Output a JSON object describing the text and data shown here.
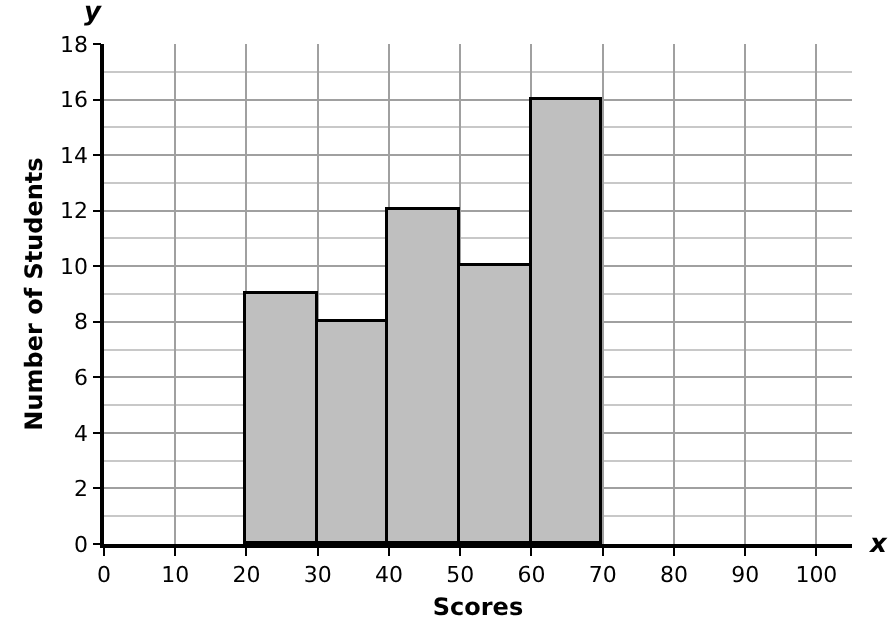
{
  "chart_data": {
    "type": "histogram",
    "xlabel": "Scores",
    "ylabel": "Number of Students",
    "annotations": [
      "x",
      "y"
    ],
    "bins": [
      20,
      30,
      40,
      50,
      60,
      70
    ],
    "values": [
      9,
      8,
      12,
      10,
      16
    ],
    "color": "#bfbfbf",
    "xlim": [
      0,
      105
    ],
    "xticks": [
      0,
      10,
      20,
      30,
      40,
      50,
      60,
      70,
      80,
      90,
      100
    ],
    "ylim": [
      0,
      18
    ],
    "yticks": [
      0,
      2,
      4,
      6,
      8,
      10,
      12,
      14,
      16,
      18
    ],
    "grid": true
  }
}
